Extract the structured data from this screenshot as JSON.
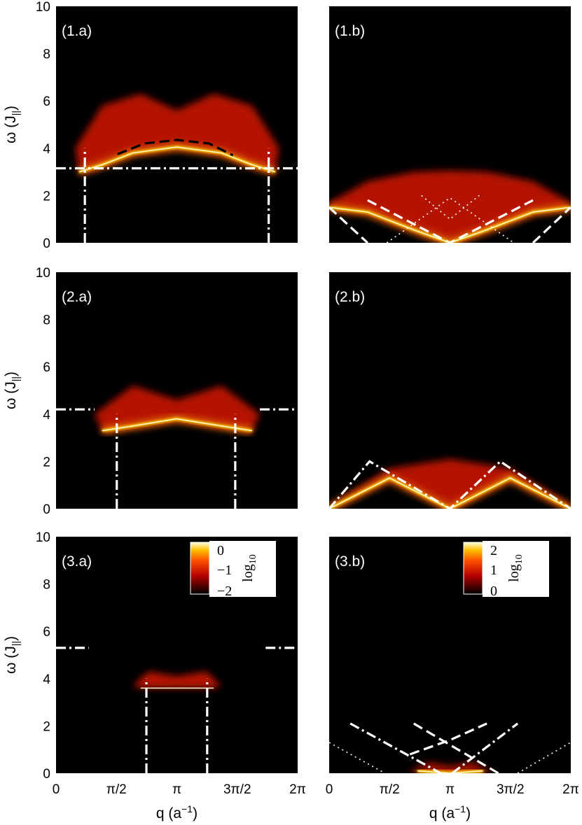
{
  "chart_data": {
    "type": "heatmap",
    "x_tick_labels": [
      "0",
      "π/2",
      "π",
      "3π/2",
      "2π"
    ],
    "x_ticks": [
      0,
      1.5708,
      3.1416,
      4.7124,
      6.2832
    ],
    "xlabel": "q (a",
    "xlabel_sup": "−1",
    "xlabel_end": ")",
    "ylabel": "ω (J",
    "ylabel_sub": "||",
    "ylabel_end": ")",
    "y_ticks": [
      0,
      2,
      4,
      6,
      8,
      10
    ],
    "xlim": [
      0,
      6.2832
    ],
    "ylim": [
      0,
      10
    ],
    "colormap": "hot",
    "panels": [
      {
        "label": "(1.a)",
        "col": 0,
        "row": 0,
        "band": [
          [
            0.6,
            3.0
          ],
          [
            1.2,
            3.3
          ],
          [
            2.0,
            3.8
          ],
          [
            3.14,
            4.05
          ],
          [
            4.3,
            3.8
          ],
          [
            5.1,
            3.3
          ],
          [
            5.7,
            3.0
          ]
        ],
        "top": [
          [
            0.5,
            4.0
          ],
          [
            1.2,
            5.8
          ],
          [
            2.2,
            6.3
          ],
          [
            3.14,
            5.6
          ],
          [
            4.1,
            6.3
          ],
          [
            5.1,
            5.8
          ],
          [
            5.8,
            4.0
          ]
        ],
        "lines": [
          {
            "style": "dashdot",
            "color": "#ffffff",
            "points": [
              [
                0,
                3.15
              ],
              [
                6.2832,
                3.15
              ]
            ]
          },
          {
            "style": "dashdot",
            "color": "#ffffff",
            "points": [
              [
                0.75,
                0
              ],
              [
                0.75,
                4.0
              ]
            ]
          },
          {
            "style": "dashdot",
            "color": "#ffffff",
            "points": [
              [
                5.53,
                0
              ],
              [
                5.53,
                4.0
              ]
            ]
          },
          {
            "style": "dash",
            "color": "#000000",
            "points": [
              [
                1.6,
                3.75
              ],
              [
                2.3,
                4.2
              ],
              [
                3.14,
                4.35
              ],
              [
                3.98,
                4.2
              ],
              [
                4.6,
                3.7
              ]
            ]
          }
        ]
      },
      {
        "label": "(1.b)",
        "col": 1,
        "row": 0,
        "band": [
          [
            0.0,
            1.5
          ],
          [
            1.0,
            1.3
          ],
          [
            2.2,
            0.55
          ],
          [
            3.14,
            0.0
          ],
          [
            4.1,
            0.55
          ],
          [
            5.3,
            1.3
          ],
          [
            6.28,
            1.5
          ]
        ],
        "top": [
          [
            0.0,
            1.7
          ],
          [
            1.0,
            2.6
          ],
          [
            2.2,
            3.0
          ],
          [
            3.14,
            3.05
          ],
          [
            4.1,
            3.0
          ],
          [
            5.3,
            2.6
          ],
          [
            6.28,
            1.7
          ]
        ],
        "lines": [
          {
            "style": "dash",
            "color": "#ffffff",
            "points": [
              [
                0,
                1.5
              ],
              [
                1.0,
                0.0
              ]
            ]
          },
          {
            "style": "dash",
            "color": "#ffffff",
            "points": [
              [
                1.0,
                1.8
              ],
              [
                3.14,
                0.0
              ],
              [
                5.3,
                1.8
              ]
            ]
          },
          {
            "style": "dash",
            "color": "#ffffff",
            "points": [
              [
                5.3,
                0.0
              ],
              [
                6.28,
                1.5
              ]
            ]
          },
          {
            "style": "dot",
            "color": "#ffffff",
            "points": [
              [
                1.5,
                0.0
              ],
              [
                3.14,
                1.9
              ],
              [
                4.8,
                0.0
              ]
            ]
          },
          {
            "style": "dot",
            "color": "#ffffff",
            "points": [
              [
                2.4,
                2.0
              ],
              [
                3.14,
                1.0
              ],
              [
                3.9,
                2.0
              ]
            ]
          }
        ]
      },
      {
        "label": "(2.a)",
        "col": 0,
        "row": 1,
        "band": [
          [
            1.2,
            3.3
          ],
          [
            2.0,
            3.5
          ],
          [
            3.14,
            3.8
          ],
          [
            4.3,
            3.5
          ],
          [
            5.1,
            3.3
          ]
        ],
        "top": [
          [
            1.0,
            4.0
          ],
          [
            2.0,
            5.2
          ],
          [
            3.14,
            4.6
          ],
          [
            4.3,
            5.2
          ],
          [
            5.3,
            4.0
          ]
        ],
        "lines": [
          {
            "style": "dashdot",
            "color": "#ffffff",
            "points": [
              [
                0,
                4.2
              ],
              [
                1.0,
                4.2
              ]
            ]
          },
          {
            "style": "dashdot",
            "color": "#ffffff",
            "points": [
              [
                5.3,
                4.2
              ],
              [
                6.2832,
                4.2
              ]
            ]
          },
          {
            "style": "dashdot",
            "color": "#ffffff",
            "points": [
              [
                1.58,
                0
              ],
              [
                1.58,
                4.0
              ]
            ]
          },
          {
            "style": "dashdot",
            "color": "#ffffff",
            "points": [
              [
                4.66,
                0
              ],
              [
                4.66,
                4.0
              ]
            ]
          }
        ]
      },
      {
        "label": "(2.b)",
        "col": 1,
        "row": 1,
        "band": [
          [
            0.0,
            0.0
          ],
          [
            1.57,
            1.3
          ],
          [
            3.14,
            0.0
          ],
          [
            4.71,
            1.3
          ],
          [
            6.28,
            0.0
          ]
        ],
        "top": [
          [
            0.0,
            0.1
          ],
          [
            1.57,
            1.7
          ],
          [
            3.14,
            2.1
          ],
          [
            4.71,
            1.7
          ],
          [
            6.28,
            0.1
          ]
        ],
        "lines": [
          {
            "style": "dashdot",
            "color": "#ffffff",
            "points": [
              [
                0,
                0
              ],
              [
                1.05,
                2.0
              ],
              [
                3.14,
                0
              ],
              [
                4.45,
                2.0
              ],
              [
                6.28,
                0
              ]
            ]
          }
        ]
      },
      {
        "label": "(3.a)",
        "col": 0,
        "row": 2,
        "band": [
          [
            2.2,
            3.6
          ],
          [
            3.14,
            3.6
          ],
          [
            4.1,
            3.6
          ]
        ],
        "top": [
          [
            2.0,
            3.7
          ],
          [
            2.4,
            4.3
          ],
          [
            3.14,
            4.1
          ],
          [
            3.9,
            4.3
          ],
          [
            4.3,
            3.7
          ]
        ],
        "lines": [
          {
            "style": "dashdot",
            "color": "#ffffff",
            "points": [
              [
                0,
                5.3
              ],
              [
                0.85,
                5.3
              ]
            ]
          },
          {
            "style": "dashdot",
            "color": "#ffffff",
            "points": [
              [
                5.45,
                5.3
              ],
              [
                6.2832,
                5.3
              ]
            ]
          },
          {
            "style": "dashdot",
            "color": "#ffffff",
            "points": [
              [
                2.35,
                0
              ],
              [
                2.35,
                4.0
              ]
            ]
          },
          {
            "style": "dashdot",
            "color": "#ffffff",
            "points": [
              [
                3.93,
                0
              ],
              [
                3.93,
                4.0
              ]
            ]
          }
        ]
      },
      {
        "label": "(3.b)",
        "col": 1,
        "row": 2,
        "band": [
          [
            2.3,
            0.1
          ],
          [
            3.14,
            0.0
          ],
          [
            4.0,
            0.1
          ]
        ],
        "top": [
          [
            2.0,
            0.05
          ],
          [
            2.6,
            0.45
          ],
          [
            3.14,
            0.3
          ],
          [
            3.7,
            0.45
          ],
          [
            4.3,
            0.05
          ]
        ],
        "lines": [
          {
            "style": "dashdot",
            "color": "#ffffff",
            "points": [
              [
                0.55,
                2.1
              ],
              [
                2.9,
                0.0
              ]
            ]
          },
          {
            "style": "dashdot",
            "color": "#ffffff",
            "points": [
              [
                3.2,
                0.0
              ],
              [
                4.9,
                2.1
              ]
            ]
          },
          {
            "style": "dash",
            "color": "#ffffff",
            "points": [
              [
                2.1,
                0.8
              ],
              [
                3.14,
                1.4
              ],
              [
                4.1,
                2.1
              ]
            ]
          },
          {
            "style": "dash",
            "color": "#ffffff",
            "points": [
              [
                2.2,
                2.1
              ],
              [
                3.14,
                1.2
              ],
              [
                4.4,
                0.0
              ]
            ]
          },
          {
            "style": "dot",
            "color": "#ffffff",
            "points": [
              [
                0.0,
                1.3
              ],
              [
                1.45,
                0.0
              ]
            ]
          },
          {
            "style": "dot",
            "color": "#ffffff",
            "points": [
              [
                4.9,
                0.0
              ],
              [
                6.28,
                1.3
              ]
            ]
          }
        ]
      }
    ],
    "colorbars": [
      {
        "panel": "(3.a)",
        "tick_labels": [
          "0",
          "−1",
          "−2"
        ],
        "range": [
          -2.5,
          0.2
        ],
        "title": "log",
        "title_sub": "10"
      },
      {
        "panel": "(3.b)",
        "tick_labels": [
          "2",
          "1",
          "0"
        ],
        "range": [
          0,
          2.6
        ],
        "title": "log",
        "title_sub": "10"
      }
    ]
  }
}
